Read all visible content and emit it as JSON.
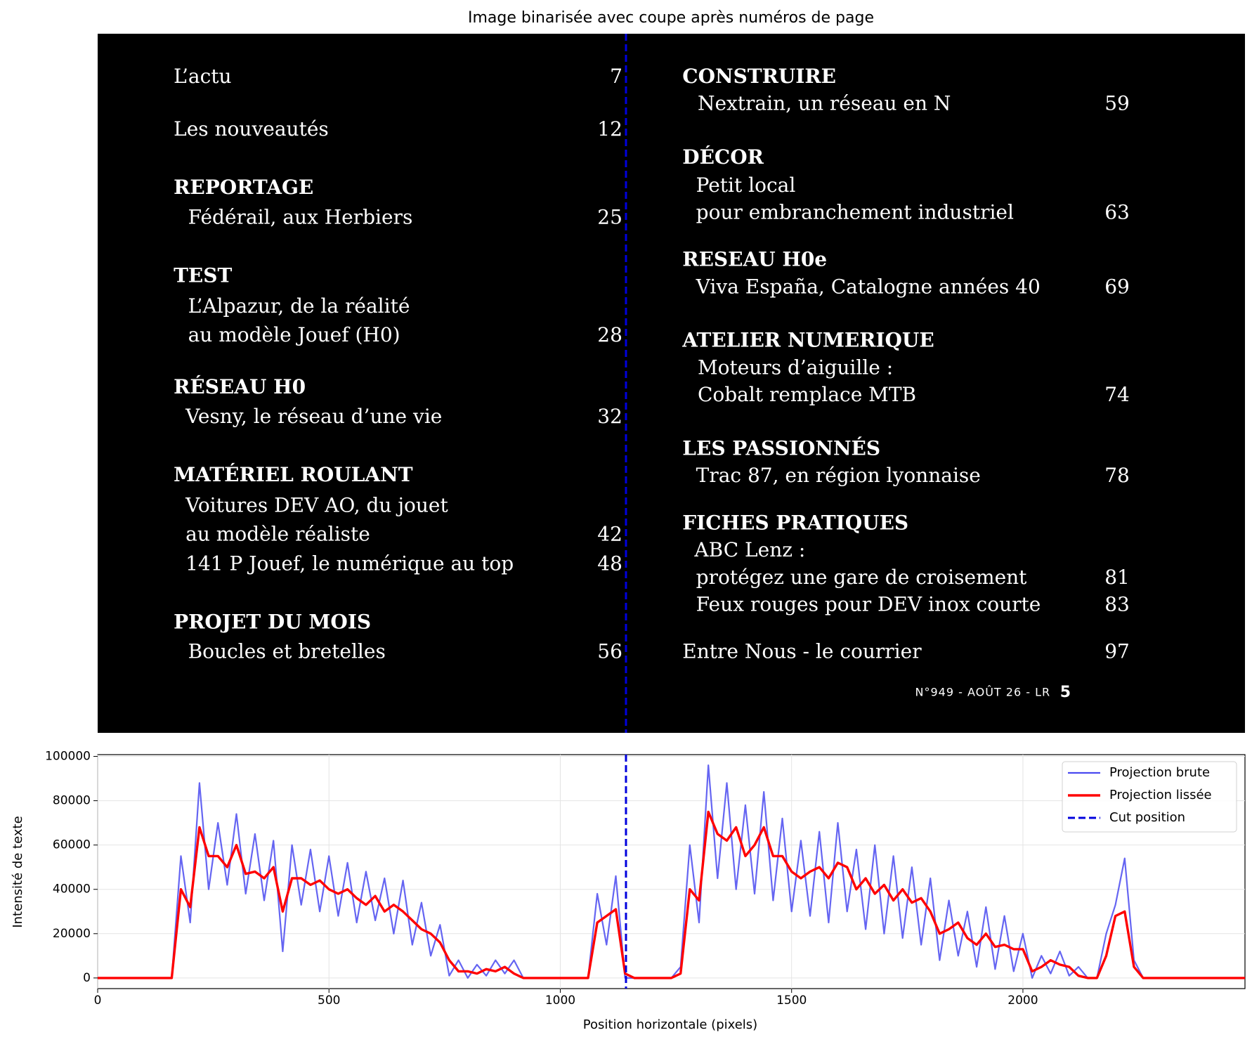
{
  "chart_data": [
    {
      "type": "image",
      "title": "Image binarisée avec coupe après numéros de page",
      "left_column": [
        {
          "text": "L’actu",
          "page": "7"
        },
        {
          "text": "Les nouveautés",
          "page": "12"
        },
        {
          "heading": "REPORTAGE"
        },
        {
          "text": "Fédérail, aux Herbiers",
          "page": "25"
        },
        {
          "heading": "TEST"
        },
        {
          "text": "L’Alpazur, de la réalité"
        },
        {
          "text": "au modèle Jouef (H0)",
          "page": "28"
        },
        {
          "heading": "RÉSEAU H0"
        },
        {
          "text": "Vesny, le réseau d’une vie",
          "page": "32"
        },
        {
          "heading": "MATÉRIEL ROULANT"
        },
        {
          "text": "Voitures DEV AO, du jouet"
        },
        {
          "text": "au modèle réaliste",
          "page": "42"
        },
        {
          "text": "141 P Jouef, le numérique au top",
          "page": "48"
        },
        {
          "heading": "PROJET DU MOIS"
        },
        {
          "text": "Boucles et bretelles",
          "page": "56"
        }
      ],
      "right_column": [
        {
          "heading": "CONSTRUIRE"
        },
        {
          "text": "Nextrain, un réseau en N",
          "page": "59"
        },
        {
          "heading": "DÉCOR"
        },
        {
          "text": "Petit local"
        },
        {
          "text": "pour embranchement industriel",
          "page": "63"
        },
        {
          "heading": "RESEAU H0e"
        },
        {
          "text": "Viva España, Catalogne années 40",
          "page": "69"
        },
        {
          "heading": "ATELIER NUMERIQUE"
        },
        {
          "text": "Moteurs d’aiguille :"
        },
        {
          "text": "Cobalt remplace MTB",
          "page": "74"
        },
        {
          "heading": "LES PASSIONNÉS"
        },
        {
          "text": "Trac 87, en région lyonnaise",
          "page": "78"
        },
        {
          "heading": "FICHES PRATIQUES"
        },
        {
          "text": "ABC Lenz :"
        },
        {
          "text": "protégez une gare de croisement",
          "page": "81"
        },
        {
          "text": "Feux rouges pour DEV inox courte",
          "page": "83"
        },
        {
          "text": "Entre Nous - le courrier",
          "page": "97"
        }
      ],
      "footer": {
        "text": "N°949 - AOÛT 26 - LR",
        "page": "5"
      }
    },
    {
      "type": "line",
      "xlabel": "Position horizontale (pixels)",
      "ylabel": "Intensité de texte",
      "xlim": [
        0,
        2480
      ],
      "ylim": [
        -4800,
        100800
      ],
      "xticks": [
        0,
        500,
        1000,
        1500,
        2000
      ],
      "yticks": [
        0,
        20000,
        40000,
        60000,
        80000,
        100000
      ],
      "grid": true,
      "legend": "upper right",
      "cut_position": 1142,
      "cut_name": "Cut position",
      "cut_color": "#0000dd",
      "x": [
        0,
        20,
        40,
        60,
        80,
        100,
        120,
        140,
        160,
        180,
        200,
        220,
        240,
        260,
        280,
        300,
        320,
        340,
        360,
        380,
        400,
        420,
        440,
        460,
        480,
        500,
        520,
        540,
        560,
        580,
        600,
        620,
        640,
        660,
        680,
        700,
        720,
        740,
        760,
        780,
        800,
        820,
        840,
        860,
        880,
        900,
        920,
        940,
        960,
        980,
        1000,
        1020,
        1040,
        1060,
        1080,
        1100,
        1120,
        1140,
        1160,
        1180,
        1200,
        1220,
        1240,
        1260,
        1280,
        1300,
        1320,
        1340,
        1360,
        1380,
        1400,
        1420,
        1440,
        1460,
        1480,
        1500,
        1520,
        1540,
        1560,
        1580,
        1600,
        1620,
        1640,
        1660,
        1680,
        1700,
        1720,
        1740,
        1760,
        1780,
        1800,
        1820,
        1840,
        1860,
        1880,
        1900,
        1920,
        1940,
        1960,
        1980,
        2000,
        2020,
        2040,
        2060,
        2080,
        2100,
        2120,
        2140,
        2160,
        2180,
        2200,
        2220,
        2240,
        2260,
        2280,
        2300,
        2320,
        2340,
        2360,
        2380,
        2400,
        2420,
        2440,
        2460,
        2480
      ],
      "series": [
        {
          "name": "Projection brute",
          "color": "#4a4af0",
          "values": [
            0,
            0,
            0,
            0,
            0,
            0,
            0,
            0,
            0,
            55000,
            25000,
            88000,
            40000,
            70000,
            42000,
            74000,
            38000,
            65000,
            35000,
            62000,
            12000,
            60000,
            33000,
            58000,
            30000,
            55000,
            28000,
            52000,
            25000,
            48000,
            26000,
            45000,
            20000,
            44000,
            15000,
            34000,
            10000,
            24000,
            1000,
            8000,
            0,
            6000,
            1000,
            8000,
            2000,
            8000,
            0,
            0,
            0,
            0,
            0,
            0,
            0,
            0,
            38000,
            15000,
            46000,
            0,
            0,
            0,
            0,
            0,
            0,
            5000,
            60000,
            25000,
            96000,
            45000,
            88000,
            40000,
            78000,
            38000,
            84000,
            35000,
            72000,
            30000,
            62000,
            28000,
            66000,
            25000,
            70000,
            30000,
            58000,
            22000,
            60000,
            20000,
            55000,
            18000,
            50000,
            15000,
            45000,
            8000,
            35000,
            10000,
            30000,
            5000,
            32000,
            4000,
            28000,
            3000,
            20000,
            0,
            10000,
            2000,
            12000,
            1000,
            5000,
            0,
            0,
            20000,
            33000,
            54000,
            8000,
            0,
            0,
            0,
            0,
            0,
            0,
            0,
            0,
            0,
            0,
            0,
            0
          ]
        },
        {
          "name": "Projection lissée",
          "color": "#ff0000",
          "values": [
            0,
            0,
            0,
            0,
            0,
            0,
            0,
            0,
            0,
            40000,
            32000,
            68000,
            55000,
            55000,
            50000,
            60000,
            47000,
            48000,
            45000,
            50000,
            30000,
            45000,
            45000,
            42000,
            44000,
            40000,
            38000,
            40000,
            36000,
            33000,
            37000,
            30000,
            33000,
            30000,
            26000,
            22000,
            20000,
            16000,
            8000,
            3000,
            3000,
            2000,
            4000,
            3000,
            5000,
            2000,
            0,
            0,
            0,
            0,
            0,
            0,
            0,
            0,
            25000,
            28000,
            31000,
            2000,
            0,
            0,
            0,
            0,
            0,
            2000,
            40000,
            35000,
            75000,
            65000,
            62000,
            68000,
            55000,
            60000,
            68000,
            55000,
            55000,
            48000,
            45000,
            48000,
            50000,
            45000,
            52000,
            50000,
            40000,
            45000,
            38000,
            42000,
            35000,
            40000,
            34000,
            36000,
            30000,
            20000,
            22000,
            25000,
            18000,
            15000,
            20000,
            14000,
            15000,
            13000,
            13000,
            3000,
            5000,
            8000,
            6000,
            5000,
            1000,
            0,
            0,
            10000,
            28000,
            30000,
            5000,
            0,
            0,
            0,
            0,
            0,
            0,
            0,
            0,
            0,
            0,
            0,
            0
          ]
        }
      ]
    }
  ]
}
